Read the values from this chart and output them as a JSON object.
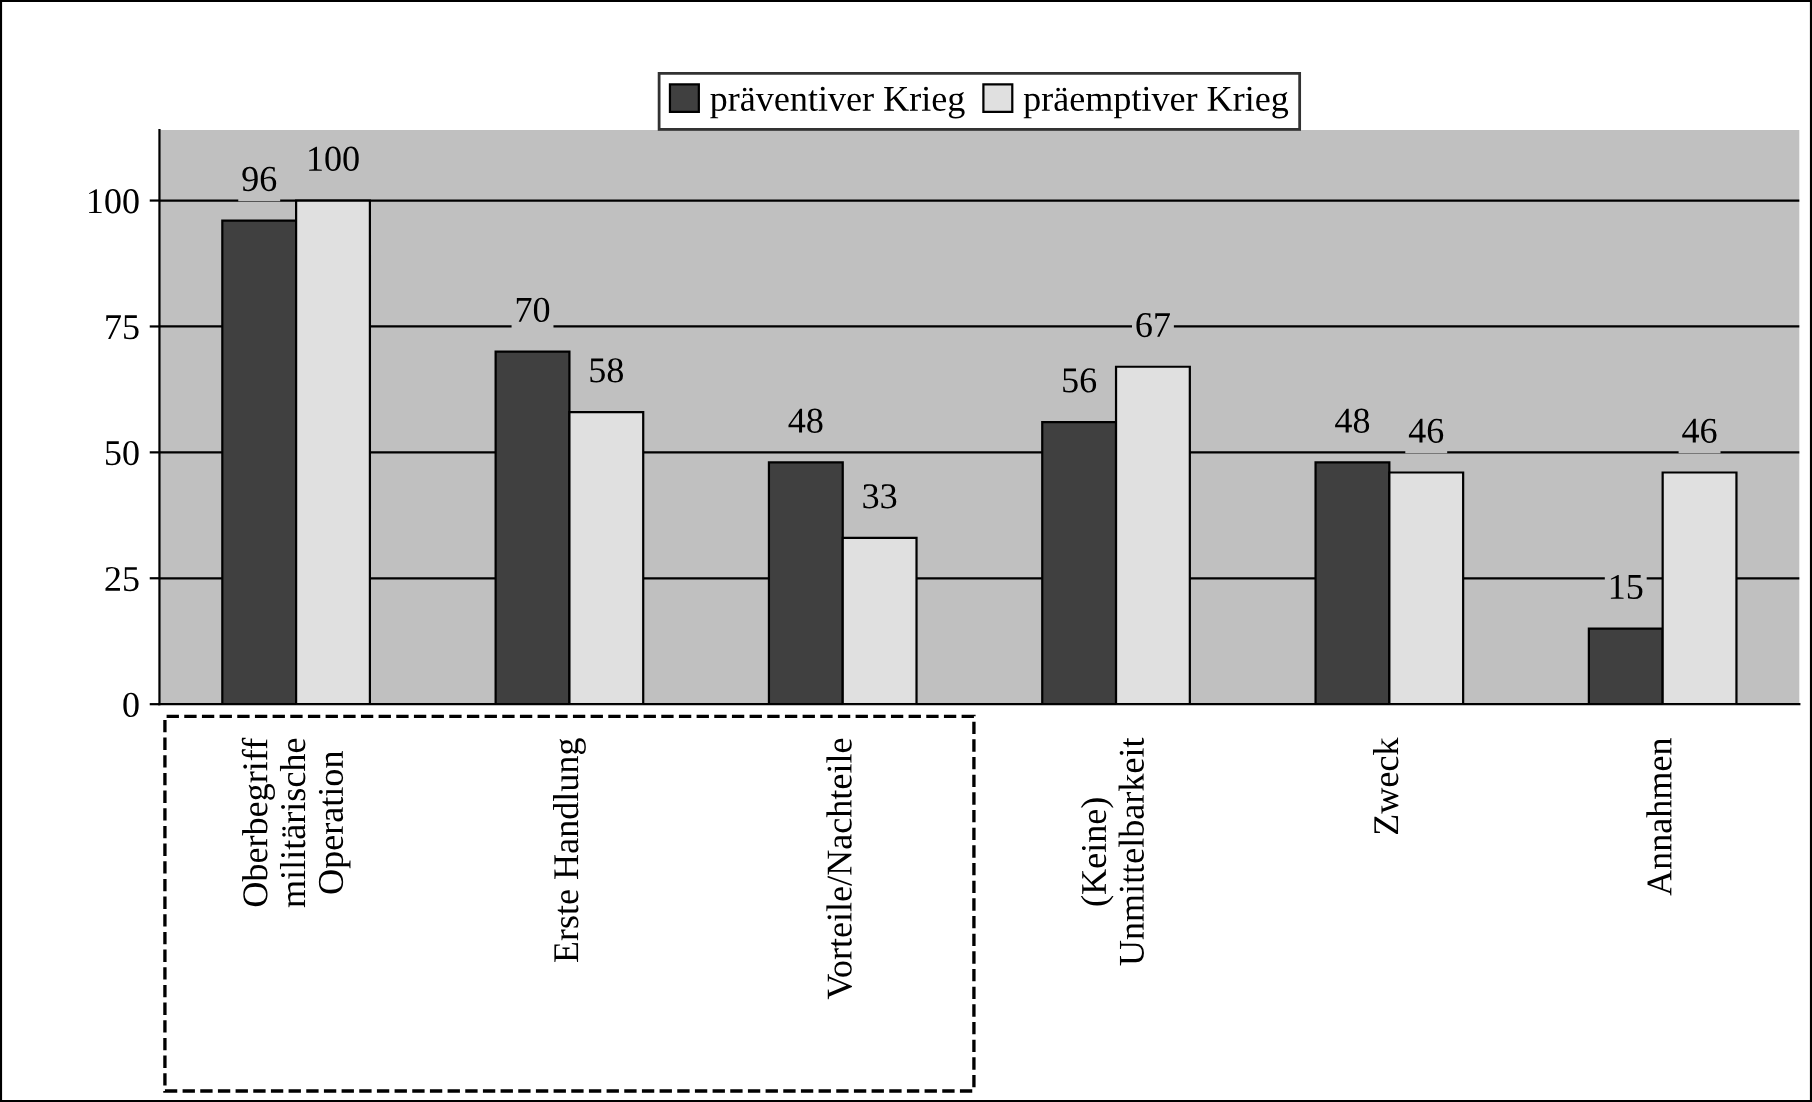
{
  "chart_data": {
    "type": "bar",
    "categories": [
      "Oberbegriff\nmilitärische\nOperation",
      "Erste Handlung",
      "Vorteile/Nachteile",
      "(Keine)\nUnmittelbarkeit",
      "Zweck",
      "Annahmen"
    ],
    "series": [
      {
        "name": "präventiver Krieg",
        "color": "#404040",
        "values": [
          96,
          70,
          48,
          56,
          48,
          15
        ]
      },
      {
        "name": "präemptiver Krieg",
        "color": "#e0e0e0",
        "values": [
          100,
          58,
          33,
          67,
          46,
          46
        ]
      }
    ],
    "ylim": [
      0,
      114
    ],
    "yticks": [
      0,
      25,
      50,
      75,
      100
    ],
    "grid": "y",
    "legend": "top",
    "data_labels": true
  }
}
